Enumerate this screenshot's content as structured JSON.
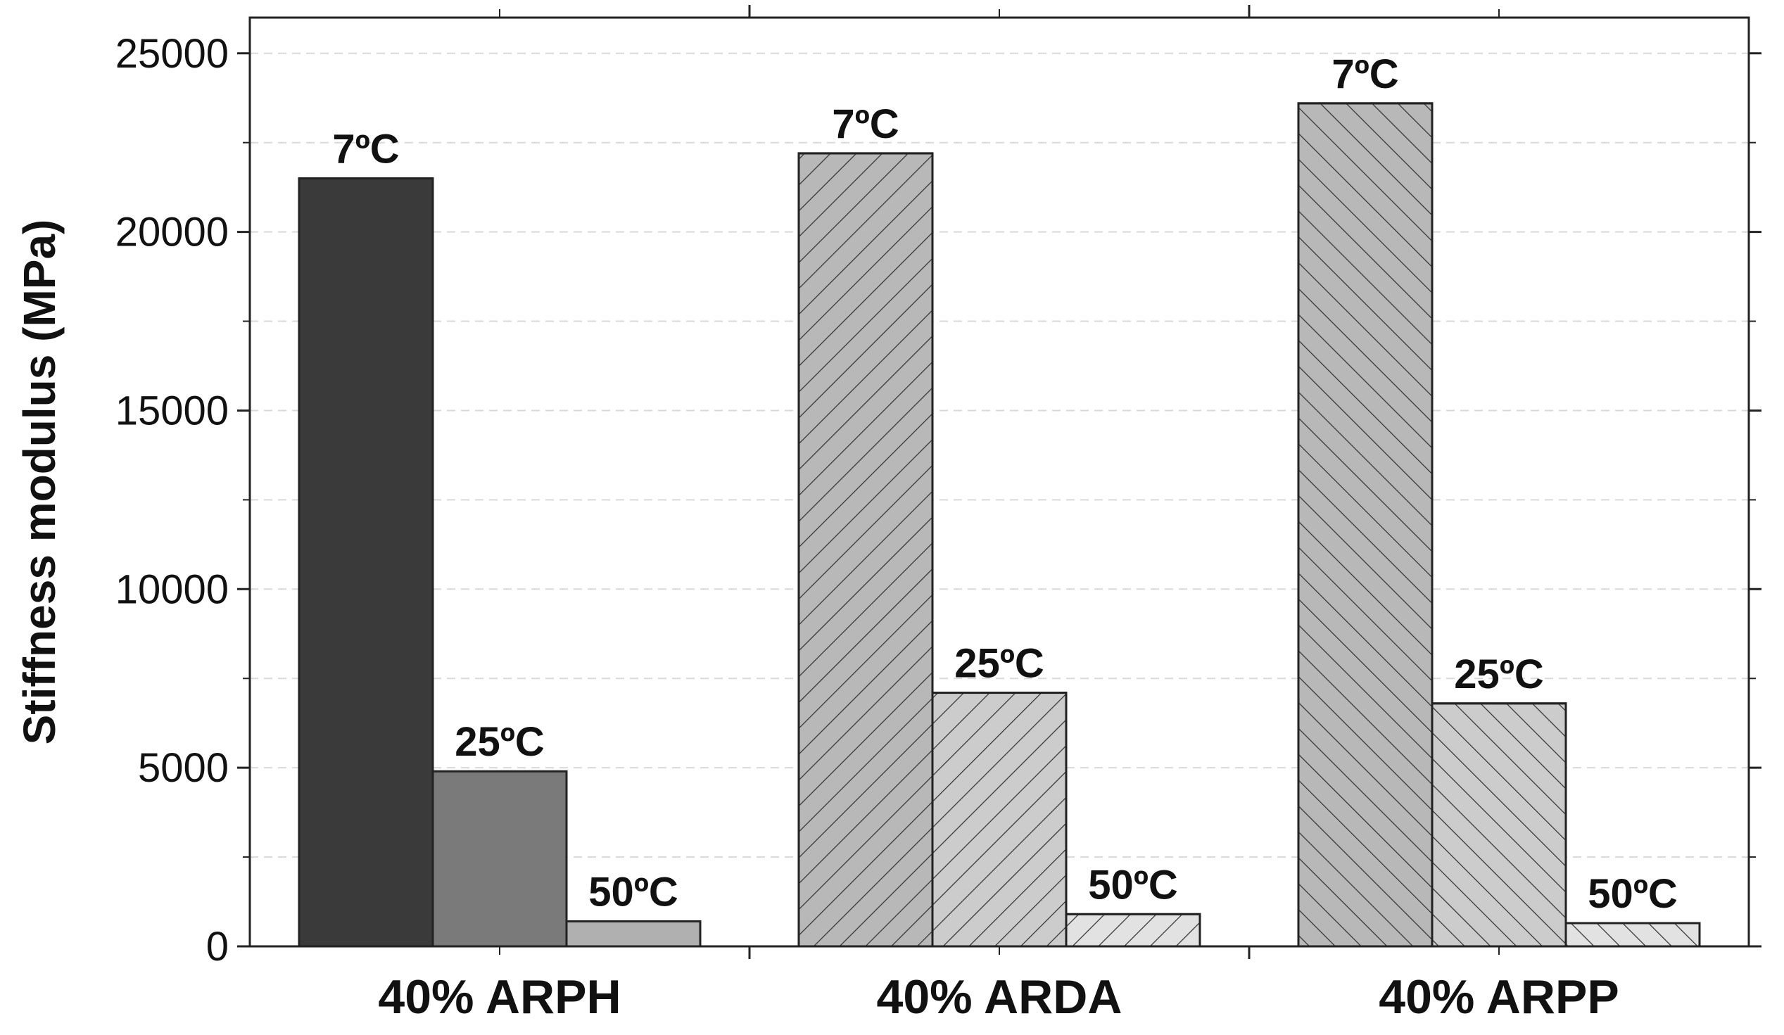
{
  "chart_data": {
    "type": "bar",
    "categories": [
      "40% ARPH",
      "40% ARDA",
      "40% ARPP"
    ],
    "series": [
      {
        "name": "7ºC",
        "values": [
          21500,
          22200,
          23600
        ]
      },
      {
        "name": "25ºC",
        "values": [
          4900,
          7100,
          6800
        ]
      },
      {
        "name": "50ºC",
        "values": [
          700,
          900,
          650
        ]
      }
    ],
    "data_labels": [
      [
        "7ºC",
        "25ºC",
        "50ºC"
      ],
      [
        "7ºC",
        "25ºC",
        "50ºC"
      ],
      [
        "7ºC",
        "25ºC",
        "50ºC"
      ]
    ],
    "xlabel": "",
    "ylabel": "Stiffness modulus (MPa)",
    "ylim": [
      0,
      26000
    ],
    "yticks": [
      0,
      5000,
      10000,
      15000,
      20000,
      25000
    ],
    "grid": true,
    "legend": "none",
    "colors": {
      "ARPH": [
        "#3a3a3a",
        "#7a7a7a",
        "#b0b0b0"
      ],
      "ARDA": [
        "#b8b8b8",
        "#cccccc",
        "#e2e2e2"
      ],
      "ARPP": [
        "#b8b8b8",
        "#cccccc",
        "#e2e2e2"
      ],
      "hatch_line": "#333333",
      "grid": "#d9d9d9"
    },
    "hatch": {
      "ARPH": [
        "none",
        "none",
        "none"
      ],
      "ARDA": [
        "forward",
        "forward",
        "forward"
      ],
      "ARPP": [
        "backward",
        "backward",
        "backward"
      ]
    }
  }
}
